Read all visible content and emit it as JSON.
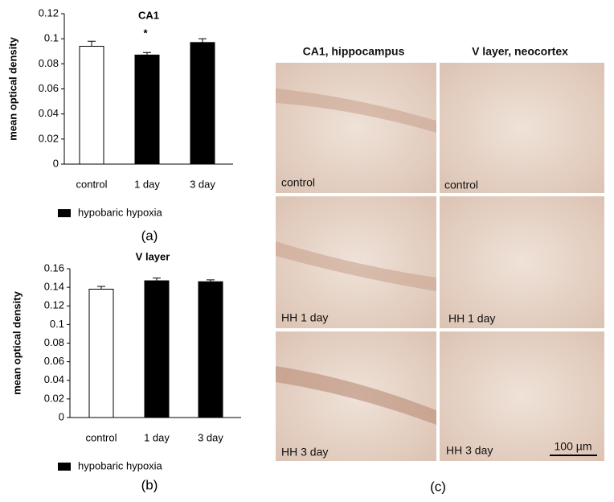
{
  "chart_data": [
    {
      "type": "bar",
      "title": "CA1",
      "ylabel": "mean optical density",
      "categories": [
        "control",
        "1 day",
        "3 day"
      ],
      "values": [
        0.094,
        0.087,
        0.097
      ],
      "errors": [
        0.004,
        0.002,
        0.003
      ],
      "colors": [
        "#ffffff",
        "#000000",
        "#000000"
      ],
      "ylim": [
        0,
        0.12
      ],
      "yticks": [
        0,
        0.02,
        0.04,
        0.06,
        0.08,
        0.1,
        0.12
      ],
      "annotation": "*",
      "legend_label": "hypobaric hypoxia",
      "legend_color": "#000000",
      "panel_label": "(a)"
    },
    {
      "type": "bar",
      "title": "V layer",
      "ylabel": "mean optical density",
      "categories": [
        "control",
        "1 day",
        "3 day"
      ],
      "values": [
        0.138,
        0.147,
        0.146
      ],
      "errors": [
        0.003,
        0.003,
        0.002
      ],
      "colors": [
        "#ffffff",
        "#000000",
        "#000000"
      ],
      "ylim": [
        0,
        0.16
      ],
      "yticks": [
        0,
        0.02,
        0.04,
        0.06,
        0.08,
        0.1,
        0.12,
        0.14,
        0.16
      ],
      "legend_label": "hypobaric hypoxia",
      "legend_color": "#000000",
      "panel_label": "(b)"
    }
  ],
  "panel_c": {
    "columns": [
      "CA1, hippocampus",
      "V layer, neocortex"
    ],
    "image_labels": [
      [
        "control",
        "control"
      ],
      [
        "HH 1 day",
        "HH 1 day"
      ],
      [
        "HH 3 day",
        "HH 3 day"
      ]
    ],
    "scale_bar": "100 µm",
    "panel_label": "(c)"
  }
}
